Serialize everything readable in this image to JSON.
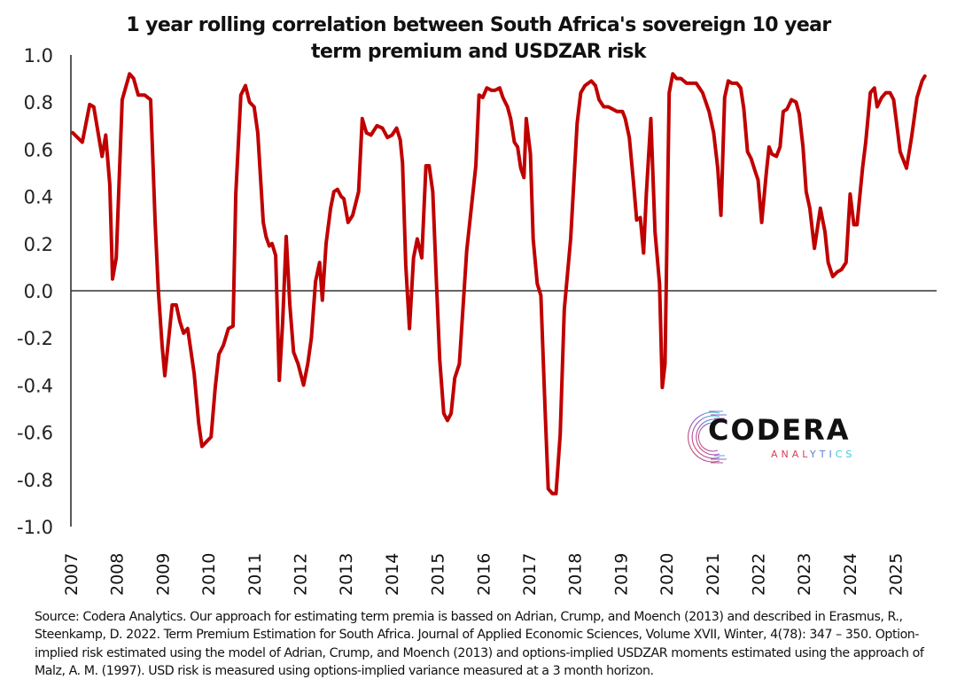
{
  "chart_data": {
    "type": "line",
    "title": "1 year rolling correlation between South Africa's sovereign 10 year term premium and USDZAR risk",
    "title_lines": [
      "1 year rolling correlation between South Africa's sovereign 10 year",
      "term premium and USDZAR risk"
    ],
    "xlabel": "",
    "ylabel": "",
    "ylim": [
      -1.0,
      1.0
    ],
    "xlim": [
      2007,
      2025.9
    ],
    "y_ticks": [
      "1.0",
      "0.8",
      "0.6",
      "0.4",
      "0.2",
      "0.0",
      "-0.2",
      "-0.4",
      "-0.6",
      "-0.8",
      "-1.0"
    ],
    "y_tick_values": [
      1.0,
      0.8,
      0.6,
      0.4,
      0.2,
      0.0,
      -0.2,
      -0.4,
      -0.6,
      -0.8,
      -1.0
    ],
    "x_ticks": [
      "2007",
      "2008",
      "2009",
      "2010",
      "2011",
      "2012",
      "2013",
      "2014",
      "2015",
      "2016",
      "2017",
      "2018",
      "2019",
      "2020",
      "2021",
      "2022",
      "2023",
      "2024",
      "2025"
    ],
    "grid": false,
    "legend": "none",
    "series": [
      {
        "name": "1 year rolling correlation",
        "color": "#c00000",
        "x": [
          2007.04,
          2007.25,
          2007.41,
          2007.5,
          2007.68,
          2007.76,
          2007.85,
          2007.91,
          2007.99,
          2008.12,
          2008.28,
          2008.37,
          2008.47,
          2008.61,
          2008.74,
          2008.84,
          2008.91,
          2008.99,
          2009.05,
          2009.21,
          2009.3,
          2009.38,
          2009.46,
          2009.55,
          2009.69,
          2009.79,
          2009.86,
          2009.96,
          2010.06,
          2010.15,
          2010.23,
          2010.33,
          2010.44,
          2010.54,
          2010.6,
          2010.71,
          2010.81,
          2010.9,
          2011.0,
          2011.08,
          2011.2,
          2011.26,
          2011.33,
          2011.39,
          2011.47,
          2011.55,
          2011.62,
          2011.7,
          2011.78,
          2011.86,
          2011.96,
          2012.08,
          2012.17,
          2012.25,
          2012.34,
          2012.43,
          2012.49,
          2012.57,
          2012.67,
          2012.74,
          2012.82,
          2012.9,
          2012.96,
          2013.05,
          2013.15,
          2013.28,
          2013.36,
          2013.45,
          2013.55,
          2013.68,
          2013.8,
          2013.91,
          2014.01,
          2014.11,
          2014.19,
          2014.24,
          2014.31,
          2014.39,
          2014.48,
          2014.56,
          2014.66,
          2014.75,
          2014.82,
          2014.9,
          2014.98,
          2015.05,
          2015.14,
          2015.22,
          2015.3,
          2015.38,
          2015.48,
          2015.64,
          2015.84,
          2015.91,
          2015.99,
          2016.08,
          2016.18,
          2016.26,
          2016.36,
          2016.43,
          2016.53,
          2016.6,
          2016.68,
          2016.75,
          2016.82,
          2016.89,
          2016.94,
          2017.03,
          2017.09,
          2017.18,
          2017.26,
          2017.35,
          2017.42,
          2017.51,
          2017.59,
          2017.68,
          2017.77,
          2017.91,
          2018.05,
          2018.13,
          2018.22,
          2018.36,
          2018.45,
          2018.53,
          2018.63,
          2018.73,
          2018.83,
          2018.92,
          2019.04,
          2019.1,
          2019.19,
          2019.28,
          2019.35,
          2019.43,
          2019.5,
          2019.56,
          2019.66,
          2019.75,
          2019.85,
          2019.91,
          2019.97,
          2020.06,
          2020.14,
          2020.22,
          2020.32,
          2020.44,
          2020.53,
          2020.65,
          2020.79,
          2020.93,
          2021.03,
          2021.12,
          2021.19,
          2021.27,
          2021.35,
          2021.43,
          2021.54,
          2021.62,
          2021.69,
          2021.77,
          2021.85,
          2021.93,
          2022.0,
          2022.08,
          2022.18,
          2022.24,
          2022.3,
          2022.4,
          2022.48,
          2022.55,
          2022.63,
          2022.73,
          2022.83,
          2022.9,
          2022.98,
          2023.05,
          2023.13,
          2023.23,
          2023.36,
          2023.46,
          2023.53,
          2023.63,
          2023.73,
          2023.82,
          2023.92,
          2024.01,
          2024.09,
          2024.16,
          2024.28,
          2024.35,
          2024.45,
          2024.54,
          2024.6,
          2024.7,
          2024.79,
          2024.88,
          2024.96,
          2025.05,
          2025.1,
          2025.24,
          2025.35,
          2025.47,
          2025.58,
          2025.64
        ],
        "values": [
          0.67,
          0.63,
          0.79,
          0.78,
          0.57,
          0.66,
          0.45,
          0.05,
          0.14,
          0.81,
          0.92,
          0.9,
          0.83,
          0.83,
          0.81,
          0.29,
          0.0,
          -0.23,
          -0.36,
          -0.06,
          -0.06,
          -0.13,
          -0.18,
          -0.16,
          -0.35,
          -0.56,
          -0.66,
          -0.64,
          -0.62,
          -0.41,
          -0.27,
          -0.23,
          -0.16,
          -0.15,
          0.41,
          0.83,
          0.87,
          0.8,
          0.78,
          0.67,
          0.29,
          0.23,
          0.19,
          0.2,
          0.15,
          -0.38,
          -0.14,
          0.23,
          -0.06,
          -0.26,
          -0.31,
          -0.4,
          -0.31,
          -0.2,
          0.04,
          0.12,
          -0.04,
          0.2,
          0.35,
          0.42,
          0.43,
          0.4,
          0.39,
          0.29,
          0.32,
          0.42,
          0.73,
          0.67,
          0.66,
          0.7,
          0.69,
          0.65,
          0.66,
          0.69,
          0.64,
          0.54,
          0.11,
          -0.16,
          0.14,
          0.22,
          0.14,
          0.53,
          0.53,
          0.42,
          0.03,
          -0.29,
          -0.52,
          -0.55,
          -0.52,
          -0.37,
          -0.31,
          0.17,
          0.53,
          0.83,
          0.82,
          0.86,
          0.85,
          0.85,
          0.86,
          0.82,
          0.78,
          0.73,
          0.63,
          0.61,
          0.52,
          0.48,
          0.73,
          0.58,
          0.22,
          0.03,
          -0.02,
          -0.5,
          -0.84,
          -0.86,
          -0.86,
          -0.61,
          -0.08,
          0.22,
          0.71,
          0.84,
          0.87,
          0.89,
          0.87,
          0.81,
          0.78,
          0.78,
          0.77,
          0.76,
          0.76,
          0.73,
          0.65,
          0.46,
          0.3,
          0.31,
          0.16,
          0.41,
          0.73,
          0.25,
          0.03,
          -0.41,
          -0.31,
          0.84,
          0.92,
          0.9,
          0.9,
          0.88,
          0.88,
          0.88,
          0.84,
          0.76,
          0.67,
          0.52,
          0.32,
          0.82,
          0.89,
          0.88,
          0.88,
          0.86,
          0.77,
          0.59,
          0.56,
          0.51,
          0.47,
          0.29,
          0.5,
          0.61,
          0.58,
          0.57,
          0.61,
          0.76,
          0.77,
          0.81,
          0.8,
          0.75,
          0.61,
          0.42,
          0.35,
          0.18,
          0.35,
          0.25,
          0.12,
          0.06,
          0.08,
          0.09,
          0.12,
          0.41,
          0.28,
          0.28,
          0.52,
          0.63,
          0.84,
          0.86,
          0.78,
          0.82,
          0.84,
          0.84,
          0.81,
          0.67,
          0.59,
          0.52,
          0.65,
          0.82,
          0.89,
          0.91
        ]
      }
    ]
  },
  "source_note": "Source: Codera Analytics. Our approach for estimating term premia is bassed on Adrian, Crump, and Moench (2013) and described in Erasmus, R., Steenkamp, D. 2022. Term Premium Estimation for South Africa. Journal of Applied Economic Sciences, Volume XVII, Winter, 4(78): 347 – 350. Option-implied risk estimated using the model of Adrian, Crump, and Moench (2013) and options-implied USDZAR moments estimated using the approach of Malz, A. M. (1997). USD risk is measured using options-implied variance measured at a 3 month horizon.",
  "logo": {
    "name": "CODERA",
    "subtitle": "ANALYTICS",
    "colors": {
      "text": "#111111",
      "accent_red": "#d9415a",
      "accent_blue": "#5b7fd6",
      "accent_teal": "#3cc7d9"
    }
  }
}
